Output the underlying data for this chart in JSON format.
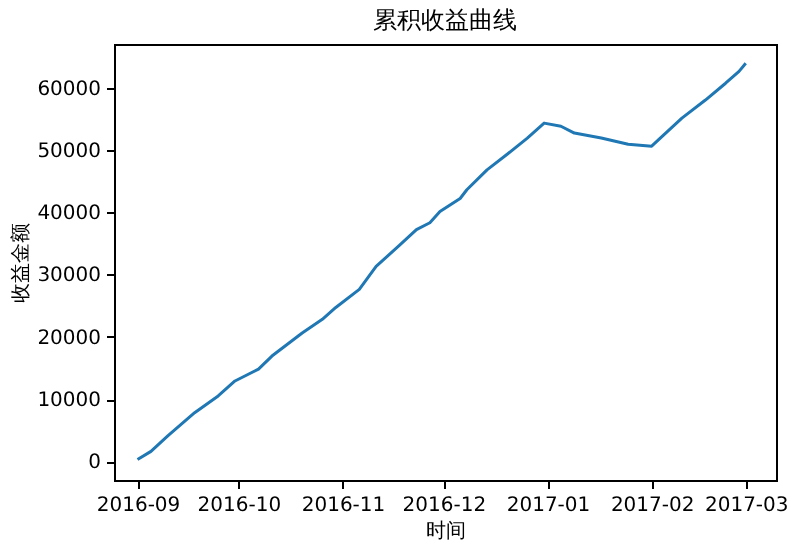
{
  "chart_data": {
    "type": "line",
    "title": "累积收益曲线",
    "xlabel": "时间",
    "ylabel": "收益金额",
    "x": [
      "2016-09-01",
      "2016-09-05",
      "2016-09-10",
      "2016-09-18",
      "2016-09-25",
      "2016-09-30",
      "2016-10-07",
      "2016-10-11",
      "2016-10-20",
      "2016-10-26",
      "2016-10-30",
      "2016-11-06",
      "2016-11-11",
      "2016-11-18",
      "2016-11-23",
      "2016-11-27",
      "2016-11-30",
      "2016-12-06",
      "2016-12-08",
      "2016-12-14",
      "2016-12-20",
      "2016-12-26",
      "2016-12-31",
      "2017-01-05",
      "2017-01-09",
      "2017-01-17",
      "2017-01-25",
      "2017-02-01",
      "2017-02-03",
      "2017-02-10",
      "2017-02-17",
      "2017-02-23",
      "2017-02-27",
      "2017-03-01"
    ],
    "series": [
      {
        "color": "#1f77b4",
        "values": [
          300,
          1600,
          4100,
          7800,
          10500,
          12900,
          14800,
          16900,
          20600,
          22800,
          24700,
          27600,
          31300,
          34700,
          37200,
          38300,
          40100,
          42200,
          43600,
          46800,
          49300,
          51900,
          54300,
          53800,
          52700,
          51900,
          50900,
          50600,
          51600,
          55100,
          58000,
          60700,
          62600,
          63900
        ]
      }
    ],
    "xlim": [
      "2016-08-25",
      "2017-03-10"
    ],
    "xticks": [
      {
        "value": "2016-09-01",
        "label": "2016-09"
      },
      {
        "value": "2016-10-01",
        "label": "2016-10"
      },
      {
        "value": "2016-11-01",
        "label": "2016-11"
      },
      {
        "value": "2016-12-01",
        "label": "2016-12"
      },
      {
        "value": "2017-01-01",
        "label": "2017-01"
      },
      {
        "value": "2017-02-01",
        "label": "2017-02"
      },
      {
        "value": "2017-03-01",
        "label": "2017-03"
      }
    ],
    "ylim": [
      -3000,
      67000
    ],
    "yticks": [
      0,
      10000,
      20000,
      30000,
      40000,
      50000,
      60000
    ],
    "grid": false
  }
}
